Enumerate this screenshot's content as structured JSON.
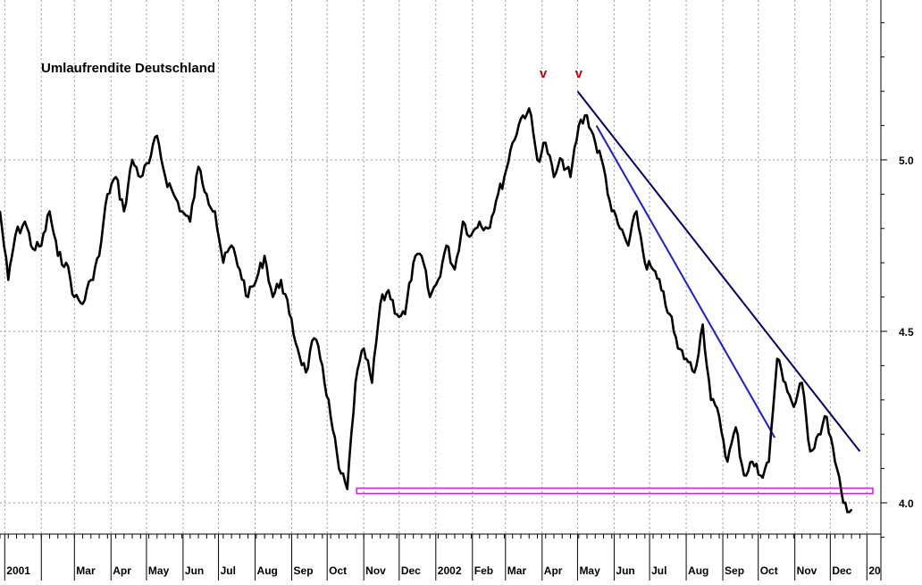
{
  "chart_data": {
    "type": "line",
    "title": "Umlaufrendite Deutschland",
    "xlabel": "",
    "ylabel": "",
    "ylim": [
      3.9,
      5.45
    ],
    "y_ticks": [
      4.0,
      4.5,
      5.0
    ],
    "y_tick_labels": [
      "4.0",
      "4.5",
      "5.0"
    ],
    "y_axis_side": "right",
    "grid": true,
    "x_tick_labels": [
      "2001",
      "Mar",
      "Apr",
      "May",
      "Jun",
      "Jul",
      "Aug",
      "Sep",
      "Oct",
      "Nov",
      "Dec",
      "2002",
      "Feb",
      "Mar",
      "Apr",
      "May",
      "Jun",
      "Jul",
      "Aug",
      "Sep",
      "Oct",
      "Nov",
      "Dec",
      "20"
    ],
    "x_tick_months": [
      "2001-01",
      "2001-03",
      "2001-04",
      "2001-05",
      "2001-06",
      "2001-07",
      "2001-08",
      "2001-09",
      "2001-10",
      "2001-11",
      "2001-12",
      "2002-01",
      "2002-02",
      "2002-03",
      "2002-04",
      "2002-05",
      "2002-06",
      "2002-07",
      "2002-08",
      "2002-09",
      "2002-10",
      "2002-11",
      "2002-12",
      "2003-01"
    ],
    "series": [
      {
        "color": "#000000",
        "x": [
          "2000-12-28",
          "2001-01-04",
          "2001-01-10",
          "2001-01-18",
          "2001-01-25",
          "2001-02-01",
          "2001-02-08",
          "2001-02-15",
          "2001-02-22",
          "2001-03-01",
          "2001-03-08",
          "2001-03-15",
          "2001-03-22",
          "2001-03-29",
          "2001-04-05",
          "2001-04-12",
          "2001-04-19",
          "2001-04-26",
          "2001-05-03",
          "2001-05-10",
          "2001-05-17",
          "2001-05-24",
          "2001-05-31",
          "2001-06-07",
          "2001-06-14",
          "2001-06-21",
          "2001-06-28",
          "2001-07-05",
          "2001-07-12",
          "2001-07-19",
          "2001-07-26",
          "2001-08-02",
          "2001-08-09",
          "2001-08-16",
          "2001-08-23",
          "2001-08-30",
          "2001-09-06",
          "2001-09-13",
          "2001-09-20",
          "2001-09-27",
          "2001-10-04",
          "2001-10-11",
          "2001-10-18",
          "2001-10-25",
          "2001-11-01",
          "2001-11-08",
          "2001-11-15",
          "2001-11-22",
          "2001-11-29",
          "2001-12-06",
          "2001-12-13",
          "2001-12-20",
          "2001-12-27",
          "2002-01-03",
          "2002-01-10",
          "2002-01-17",
          "2002-01-24",
          "2002-01-31",
          "2002-02-07",
          "2002-02-14",
          "2002-02-21",
          "2002-02-28",
          "2002-03-07",
          "2002-03-14",
          "2002-03-21",
          "2002-03-28",
          "2002-04-04",
          "2002-04-11",
          "2002-04-18",
          "2002-04-25",
          "2002-05-02",
          "2002-05-09",
          "2002-05-16",
          "2002-05-23",
          "2002-05-30",
          "2002-06-06",
          "2002-06-13",
          "2002-06-20",
          "2002-06-27",
          "2002-07-04",
          "2002-07-11",
          "2002-07-18",
          "2002-07-25",
          "2002-08-01",
          "2002-08-08",
          "2002-08-15",
          "2002-08-22",
          "2002-08-29",
          "2002-09-05",
          "2002-09-12",
          "2002-09-19",
          "2002-09-26",
          "2002-10-03",
          "2002-10-10",
          "2002-10-17",
          "2002-10-24",
          "2002-10-31",
          "2002-11-07",
          "2002-11-14",
          "2002-11-21",
          "2002-11-28",
          "2002-12-05",
          "2002-12-12",
          "2002-12-19"
        ],
        "y": [
          4.85,
          4.65,
          4.78,
          4.82,
          4.74,
          4.75,
          4.85,
          4.72,
          4.7,
          4.6,
          4.58,
          4.65,
          4.72,
          4.9,
          4.95,
          4.85,
          5.0,
          4.95,
          4.99,
          5.07,
          4.95,
          4.9,
          4.85,
          4.82,
          4.98,
          4.9,
          4.85,
          4.7,
          4.75,
          4.68,
          4.6,
          4.65,
          4.72,
          4.6,
          4.65,
          4.55,
          4.45,
          4.38,
          4.48,
          4.4,
          4.25,
          4.1,
          4.04,
          4.35,
          4.45,
          4.35,
          4.58,
          4.62,
          4.55,
          4.55,
          4.7,
          4.72,
          4.6,
          4.65,
          4.75,
          4.68,
          4.82,
          4.78,
          4.82,
          4.8,
          4.88,
          4.95,
          5.05,
          5.12,
          5.15,
          5.0,
          5.05,
          4.95,
          5.0,
          4.95,
          5.1,
          5.13,
          5.05,
          4.98,
          4.85,
          4.8,
          4.75,
          4.85,
          4.7,
          4.68,
          4.62,
          4.55,
          4.45,
          4.42,
          4.38,
          4.52,
          4.3,
          4.25,
          4.12,
          4.22,
          4.08,
          4.12,
          4.08,
          4.12,
          4.42,
          4.35,
          4.28,
          4.35,
          4.15,
          4.2,
          4.25,
          4.12,
          4.0,
          3.98
        ],
        "name": ""
      }
    ],
    "annotations": [
      {
        "text": "v",
        "date": "2002-04-02",
        "y": 5.24,
        "color": "#cc0000"
      },
      {
        "text": "v",
        "date": "2002-05-02",
        "y": 5.24,
        "color": "#cc0000"
      }
    ],
    "trendlines": [
      {
        "color": "#000066",
        "x1": "2002-05-01",
        "y1": 5.2,
        "x2": "2002-12-26",
        "y2": 4.15
      },
      {
        "color": "#1a1adb",
        "x1": "2002-05-17",
        "y1": 5.1,
        "x2": "2002-10-15",
        "y2": 4.19
      }
    ],
    "support_line": {
      "color": "#e020e0",
      "x1": "2001-10-26",
      "x2": "2003-01-06",
      "y": 4.035
    }
  }
}
